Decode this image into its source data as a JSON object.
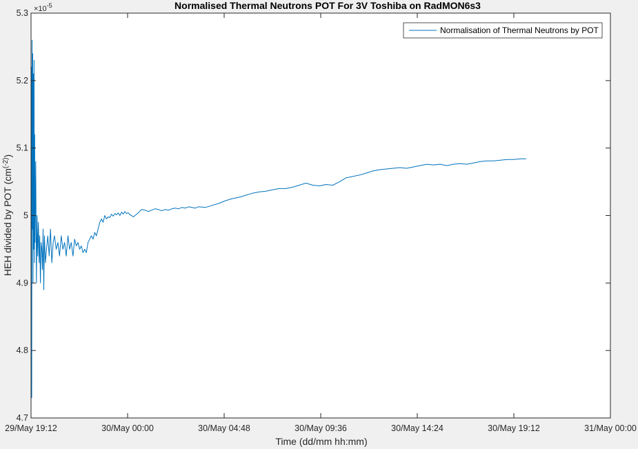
{
  "chart_data": {
    "type": "line",
    "title": "Normalised Thermal Neutrons POT For 3V Toshiba on RadMON6s3",
    "xlabel": "Time (dd/mm hh:mm)",
    "ylabel_main": "HEH divided by POT (cm",
    "ylabel_sup": "(-2)",
    "ylabel_end": ")",
    "y_multiplier": {
      "base": "×10",
      "exponent": "-5"
    },
    "xlim": [
      0,
      1728
    ],
    "ylim": [
      4.7,
      5.3
    ],
    "x_ticks": [
      0,
      288,
      576,
      864,
      1152,
      1440,
      1728
    ],
    "x_tick_labels": [
      "29/May 19:12",
      "30/May 00:00",
      "30/May 04:48",
      "30/May 09:36",
      "30/May 14:24",
      "30/May 19:12",
      "31/May 00:00"
    ],
    "y_ticks": [
      4.7,
      4.8,
      4.9,
      5.0,
      5.1,
      5.2,
      5.3
    ],
    "y_tick_labels": [
      "4.7",
      "4.8",
      "4.9",
      "5",
      "5.1",
      "5.2",
      "5.3"
    ],
    "legend": {
      "position": "top-right",
      "entries": [
        "Normalisation of Thermal Neutrons by POT"
      ]
    },
    "grid": false,
    "color": "#0072bd",
    "series": [
      {
        "name": "Normalisation of Thermal Neutrons by POT",
        "x": [
          0,
          1,
          2,
          3,
          4,
          5,
          6,
          7,
          8,
          9,
          10,
          11,
          12,
          14,
          16,
          18,
          20,
          22,
          24,
          26,
          28,
          30,
          32,
          34,
          36,
          38,
          40,
          43,
          46,
          50,
          54,
          58,
          62,
          66,
          70,
          75,
          80,
          85,
          90,
          95,
          100,
          105,
          110,
          115,
          120,
          125,
          130,
          135,
          140,
          145,
          150,
          155,
          160,
          165,
          170,
          175,
          180,
          185,
          190,
          195,
          200,
          205,
          210,
          215,
          220,
          225,
          230,
          235,
          240,
          245,
          250,
          255,
          260,
          265,
          270,
          275,
          280,
          285,
          290,
          295,
          300,
          305,
          310,
          315,
          320,
          325,
          330,
          340,
          350,
          360,
          370,
          380,
          390,
          400,
          410,
          420,
          430,
          440,
          450,
          460,
          470,
          480,
          490,
          500,
          520,
          540,
          560,
          580,
          600,
          620,
          640,
          660,
          680,
          700,
          720,
          740,
          760,
          780,
          800,
          820,
          840,
          860,
          880,
          900,
          920,
          940,
          960,
          980,
          1000,
          1020,
          1040,
          1060,
          1080,
          1100,
          1120,
          1140,
          1160,
          1180,
          1200,
          1220,
          1240,
          1260,
          1280,
          1300,
          1320,
          1340,
          1360,
          1380,
          1400,
          1420,
          1440,
          1460,
          1477
        ],
        "y": [
          4.75,
          5.22,
          4.73,
          5.26,
          4.98,
          5.24,
          4.9,
          5.21,
          4.95,
          5.23,
          4.93,
          5.12,
          4.96,
          5.08,
          4.9,
          5.0,
          4.94,
          4.99,
          4.93,
          4.97,
          4.9,
          4.96,
          4.95,
          4.92,
          4.98,
          4.89,
          4.97,
          4.93,
          4.95,
          4.97,
          4.94,
          4.98,
          4.93,
          4.96,
          4.97,
          4.95,
          4.96,
          4.94,
          4.97,
          4.95,
          4.96,
          4.94,
          4.97,
          4.95,
          4.96,
          4.94,
          4.965,
          4.955,
          4.96,
          4.95,
          4.955,
          4.945,
          4.95,
          4.945,
          4.96,
          4.965,
          4.97,
          4.965,
          4.975,
          4.97,
          4.98,
          4.99,
          4.995,
          4.99,
          5.0,
          4.995,
          4.998,
          4.997,
          5.002,
          4.999,
          5.003,
          5.001,
          5.004,
          5.0,
          5.005,
          5.002,
          5.006,
          5.003,
          5.004,
          5.001,
          5.0,
          4.998,
          5.0,
          5.002,
          5.004,
          5.007,
          5.009,
          5.008,
          5.006,
          5.008,
          5.01,
          5.009,
          5.007,
          5.009,
          5.008,
          5.01,
          5.011,
          5.01,
          5.012,
          5.011,
          5.013,
          5.012,
          5.011,
          5.013,
          5.012,
          5.015,
          5.018,
          5.022,
          5.025,
          5.027,
          5.03,
          5.033,
          5.035,
          5.036,
          5.038,
          5.04,
          5.04,
          5.042,
          5.045,
          5.048,
          5.045,
          5.044,
          5.046,
          5.045,
          5.05,
          5.056,
          5.058,
          5.06,
          5.063,
          5.066,
          5.068,
          5.069,
          5.07,
          5.071,
          5.07,
          5.072,
          5.074,
          5.076,
          5.075,
          5.076,
          5.074,
          5.076,
          5.077,
          5.076,
          5.078,
          5.08,
          5.081,
          5.081,
          5.082,
          5.083,
          5.083,
          5.084,
          5.084
        ]
      }
    ]
  }
}
